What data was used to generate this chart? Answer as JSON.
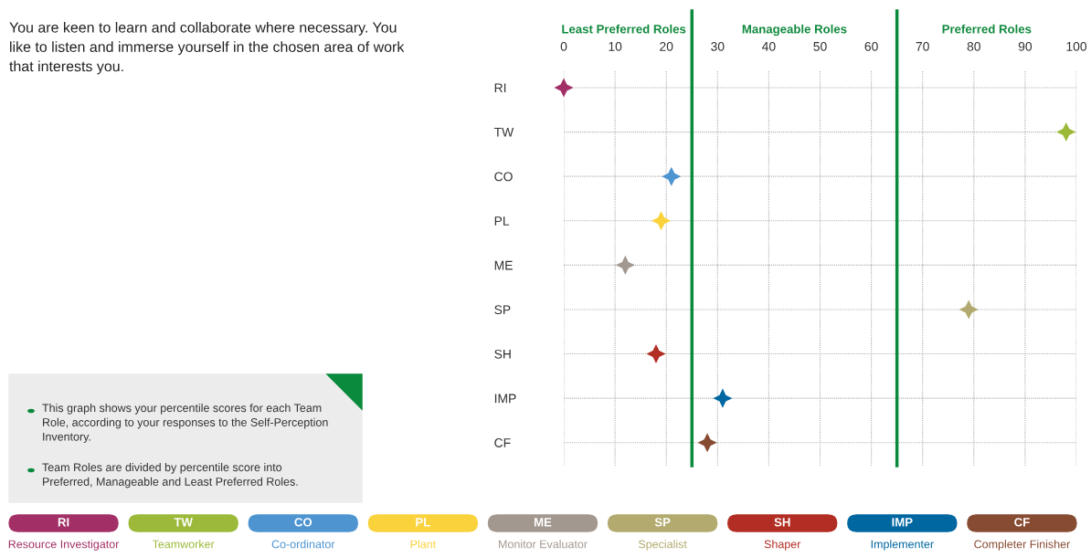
{
  "chart_data": {
    "type": "scatter",
    "categories": [
      "RI",
      "TW",
      "CO",
      "PL",
      "ME",
      "SP",
      "SH",
      "IMP",
      "CF"
    ],
    "orientation": "horizontal",
    "series": [
      {
        "name": "Resource Investigator",
        "color": "#a23067",
        "values": [
          0,
          null,
          null,
          null,
          null,
          null,
          null,
          null,
          null
        ]
      },
      {
        "name": "Teamworker",
        "color": "#9cb93a",
        "values": [
          null,
          98,
          null,
          null,
          null,
          null,
          null,
          null,
          null
        ]
      },
      {
        "name": "Co-ordinator",
        "color": "#4d94d1",
        "values": [
          null,
          null,
          21,
          null,
          null,
          null,
          null,
          null,
          null
        ]
      },
      {
        "name": "Plant",
        "color": "#f9d23c",
        "values": [
          null,
          null,
          null,
          19,
          null,
          null,
          null,
          null,
          null
        ]
      },
      {
        "name": "Monitor Evaluator",
        "color": "#a39890",
        "values": [
          null,
          null,
          null,
          null,
          12,
          null,
          null,
          null,
          null
        ]
      },
      {
        "name": "Specialist",
        "color": "#b2aa6e",
        "values": [
          null,
          null,
          null,
          null,
          null,
          79,
          null,
          null,
          null
        ]
      },
      {
        "name": "Shaper",
        "color": "#b22e24",
        "values": [
          null,
          null,
          null,
          null,
          null,
          null,
          18,
          null,
          null
        ]
      },
      {
        "name": "Implementer",
        "color": "#0067a1",
        "values": [
          null,
          null,
          null,
          null,
          null,
          null,
          null,
          31,
          null
        ]
      },
      {
        "name": "Completer Finisher",
        "color": "#874b32",
        "values": [
          null,
          null,
          null,
          null,
          null,
          null,
          null,
          null,
          28
        ]
      }
    ],
    "xlim": [
      0,
      100
    ],
    "xticks": [
      0,
      10,
      20,
      30,
      40,
      50,
      60,
      70,
      80,
      90,
      100
    ],
    "grid": true,
    "marker": "star",
    "legend": "bottom",
    "ref_lines": [
      {
        "axis": "x",
        "value": 25,
        "color": "#0a8a3c"
      },
      {
        "axis": "x",
        "value": 65,
        "color": "#0a8a3c"
      }
    ],
    "annotations": [
      "You are keen to learn and collaborate where necessary. You like to listen and immerse yourself in the chosen area of work that interests you.",
      "Least Preferred Roles",
      "Manageable Roles",
      "Preferred Roles",
      "This graph shows your percentile scores for each Team Role, according to your responses to the Self-Perception Inventory.",
      "Team Roles are divided by percentile score into Preferred, Manageable and Least Preferred Roles."
    ]
  }
}
